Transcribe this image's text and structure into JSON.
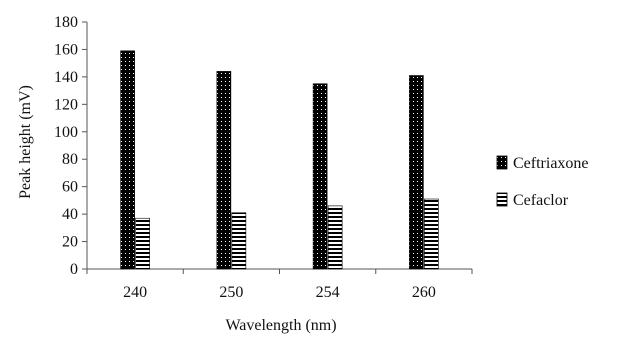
{
  "chart_data": {
    "type": "bar",
    "categories": [
      "240",
      "250",
      "254",
      "260"
    ],
    "series": [
      {
        "name": "Ceftriaxone",
        "values": [
          159,
          144,
          135,
          141
        ],
        "pattern": "dotted-black"
      },
      {
        "name": "Cefaclor",
        "values": [
          37,
          41,
          46,
          51
        ],
        "pattern": "horizontal-stripes"
      }
    ],
    "xlabel": "Wavelength  (nm)",
    "ylabel": "Peak height  (mV)",
    "ylim": [
      0,
      180
    ],
    "yticks": [
      0,
      20,
      40,
      60,
      80,
      100,
      120,
      140,
      160,
      180
    ],
    "grid": false,
    "legend_position": "right"
  }
}
